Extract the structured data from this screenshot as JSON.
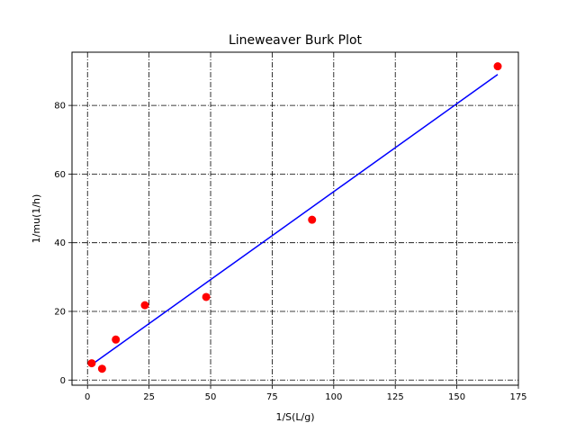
{
  "chart_data": {
    "type": "scatter",
    "title": "Lineweaver Burk Plot",
    "xlabel": "1/S(L/g)",
    "ylabel": "1/mu(1/h)",
    "xlim": [
      -6.3,
      175
    ],
    "ylim": [
      -1.5,
      95.5
    ],
    "xticks": [
      0,
      25,
      50,
      75,
      100,
      125,
      150,
      175
    ],
    "yticks": [
      0,
      20,
      40,
      60,
      80
    ],
    "grid": true,
    "series": [
      {
        "kind": "scatter",
        "color": "#ff0000",
        "x": [
          1.7,
          5.9,
          11.5,
          23.3,
          48.2,
          91.2,
          166.6
        ],
        "y": [
          4.9,
          3.3,
          11.8,
          21.8,
          24.2,
          46.7,
          91.4
        ]
      },
      {
        "kind": "line",
        "color": "#0000ff",
        "x": [
          1.7,
          166.6
        ],
        "y": [
          4.5,
          89.0
        ]
      }
    ]
  }
}
